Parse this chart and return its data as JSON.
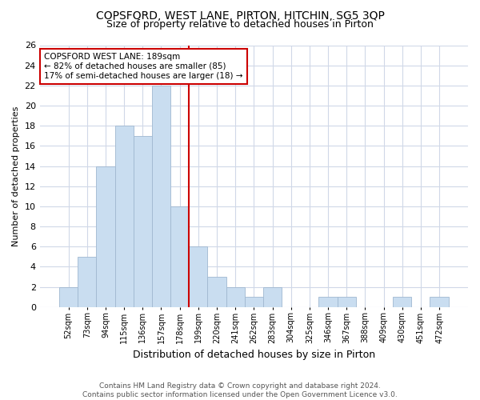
{
  "title": "COPSFORD, WEST LANE, PIRTON, HITCHIN, SG5 3QP",
  "subtitle": "Size of property relative to detached houses in Pirton",
  "xlabel": "Distribution of detached houses by size in Pirton",
  "ylabel": "Number of detached properties",
  "footnote1": "Contains HM Land Registry data © Crown copyright and database right 2024.",
  "footnote2": "Contains public sector information licensed under the Open Government Licence v3.0.",
  "bin_labels": [
    "52sqm",
    "73sqm",
    "94sqm",
    "115sqm",
    "136sqm",
    "157sqm",
    "178sqm",
    "199sqm",
    "220sqm",
    "241sqm",
    "262sqm",
    "283sqm",
    "304sqm",
    "325sqm",
    "346sqm",
    "367sqm",
    "388sqm",
    "409sqm",
    "430sqm",
    "451sqm",
    "472sqm"
  ],
  "bar_values": [
    2,
    5,
    14,
    18,
    17,
    22,
    10,
    6,
    3,
    2,
    1,
    2,
    0,
    0,
    1,
    1,
    0,
    0,
    1,
    0,
    1
  ],
  "bar_color": "#c9ddf0",
  "bar_edgecolor": "#a0b8d0",
  "vline_color": "#cc0000",
  "annotation_title": "COPSFORD WEST LANE: 189sqm",
  "annotation_line1": "← 82% of detached houses are smaller (85)",
  "annotation_line2": "17% of semi-detached houses are larger (18) →",
  "annotation_box_edgecolor": "#cc0000",
  "ylim": [
    0,
    26
  ],
  "yticks": [
    0,
    2,
    4,
    6,
    8,
    10,
    12,
    14,
    16,
    18,
    20,
    22,
    24,
    26
  ],
  "background_color": "#ffffff",
  "grid_color": "#d0d8e8",
  "title_fontsize": 10,
  "subtitle_fontsize": 9
}
